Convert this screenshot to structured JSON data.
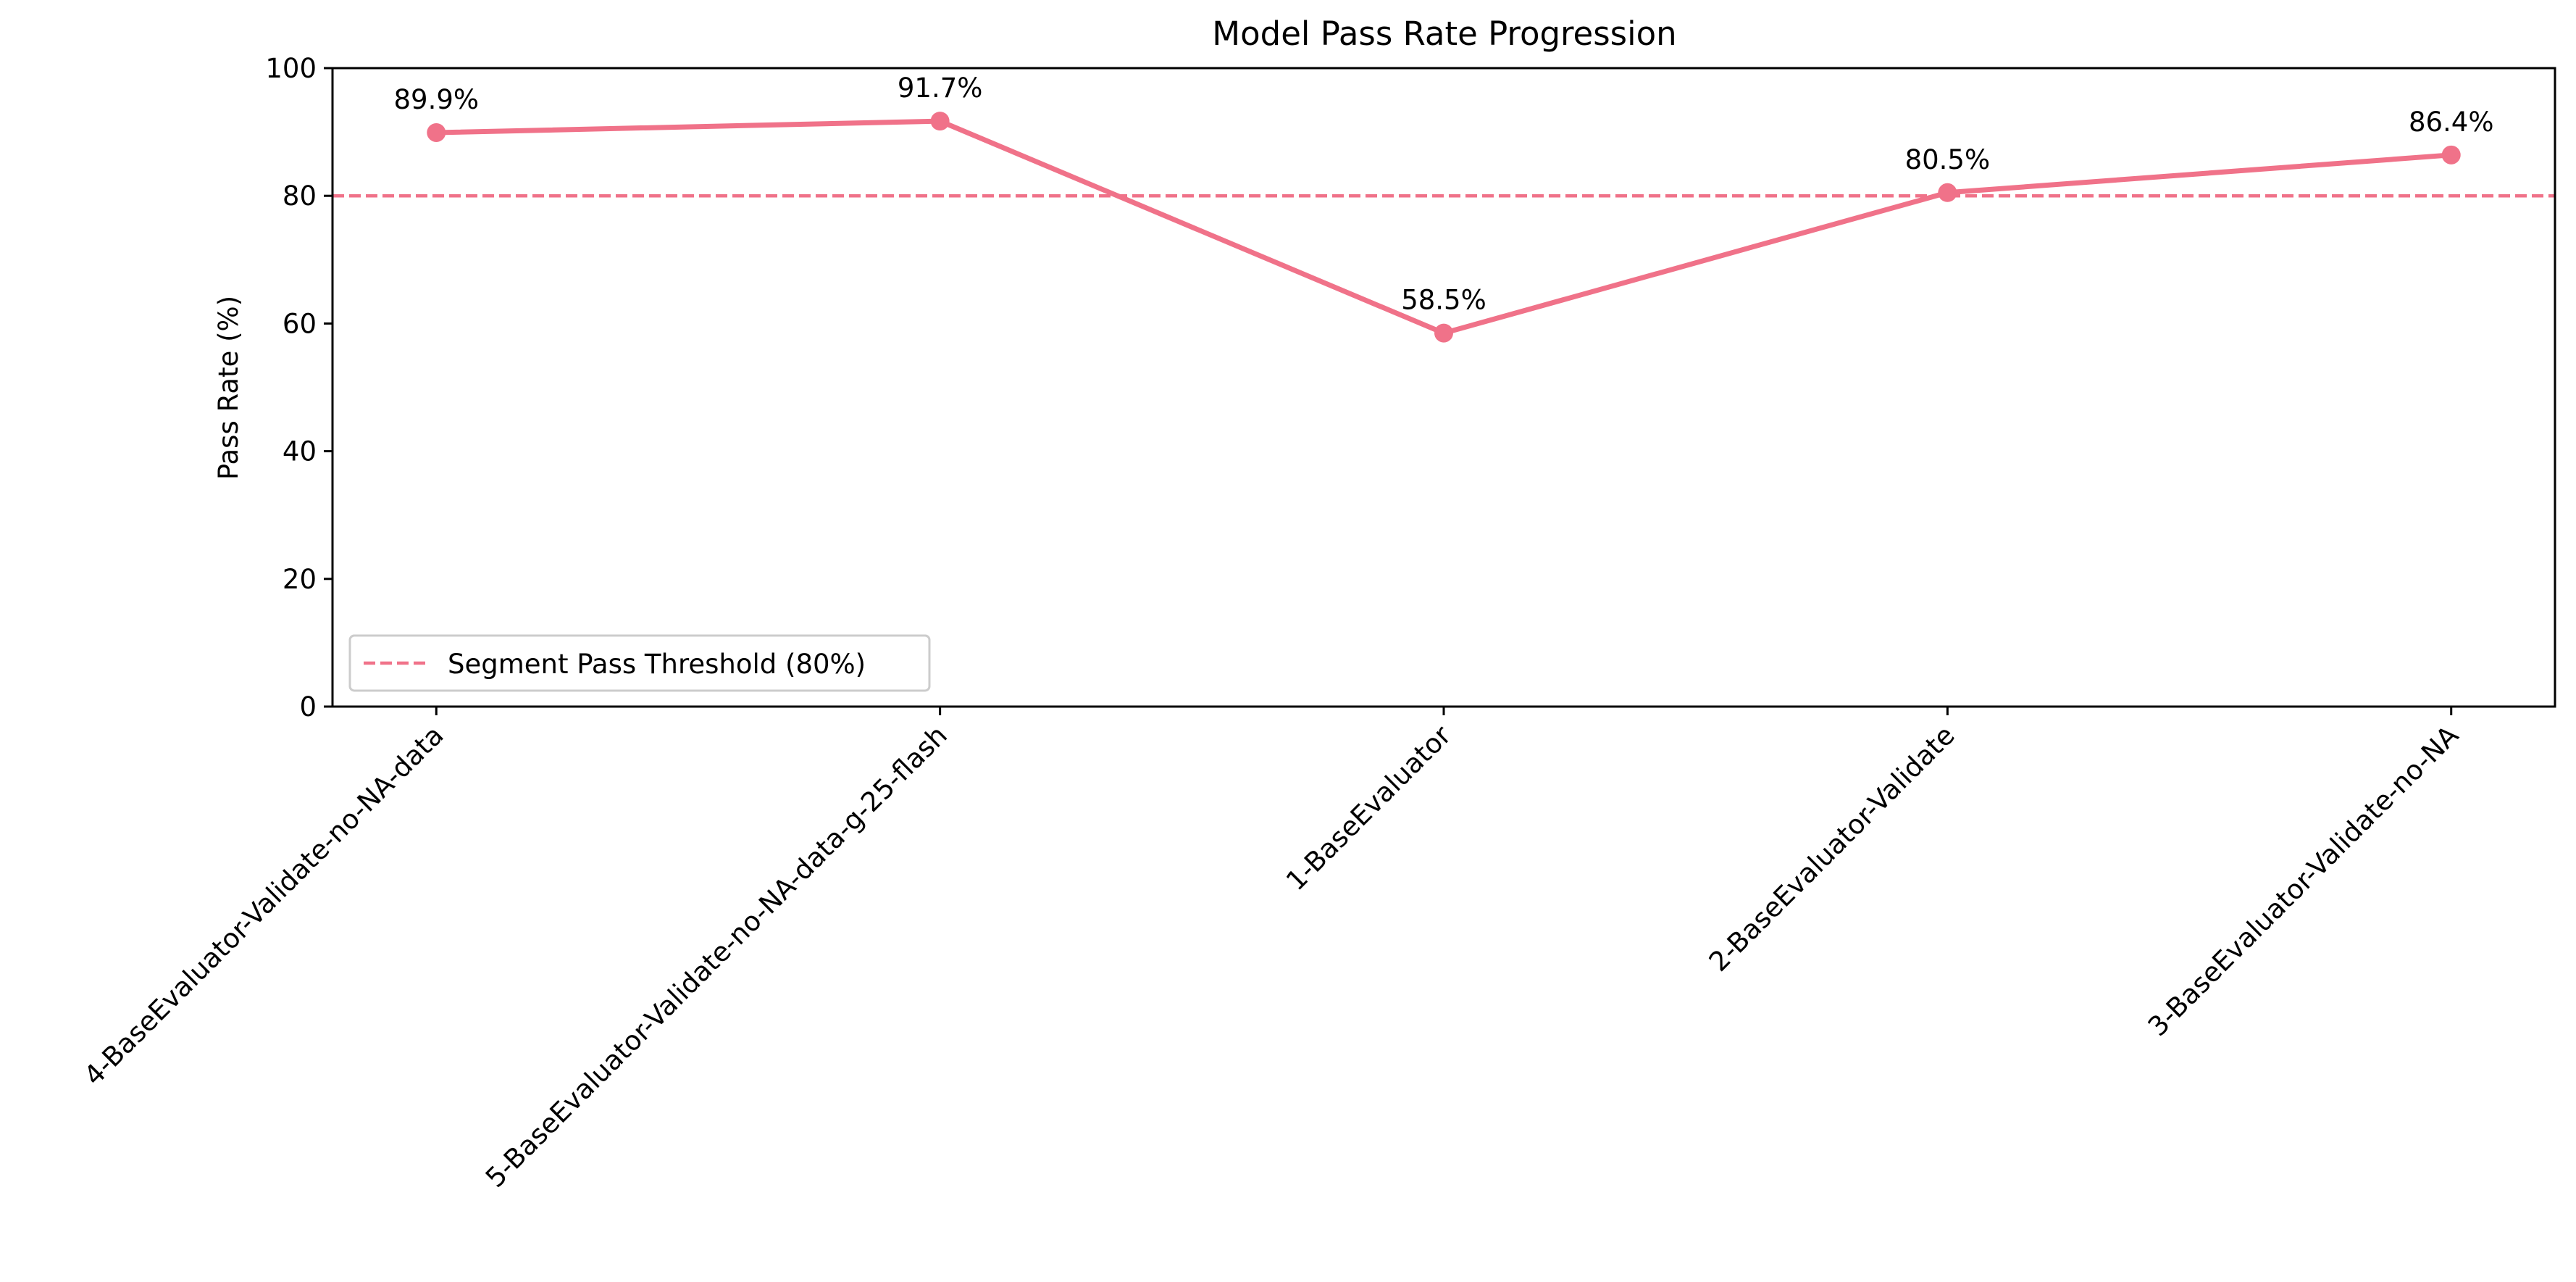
{
  "chart_data": {
    "type": "line",
    "title": "Model Pass Rate Progression",
    "xlabel": "",
    "ylabel": "Pass Rate (%)",
    "ylim": [
      0,
      100
    ],
    "yticks": [
      0,
      20,
      40,
      60,
      80,
      100
    ],
    "grid": false,
    "categories": [
      "4-BaseEvaluator-Validate-no-NA-data",
      "5-BaseEvaluator-Validate-no-NA-data-g-25-flash",
      "1-BaseEvaluator",
      "2-BaseEvaluator-Validate",
      "3-BaseEvaluator-Validate-no-NA"
    ],
    "series": [
      {
        "values": [
          89.9,
          91.7,
          58.5,
          80.5,
          86.4
        ],
        "data_labels": [
          "89.9%",
          "91.7%",
          "58.5%",
          "80.5%",
          "86.4%"
        ],
        "color": "#f07289"
      }
    ],
    "reference_lines": [
      {
        "name": "Segment Pass Threshold (80%)",
        "y": 80,
        "style": "dashed",
        "color": "#f07289"
      }
    ],
    "legend": {
      "placement": "lower-left",
      "entries": [
        "Segment Pass Threshold (80%)"
      ]
    }
  }
}
